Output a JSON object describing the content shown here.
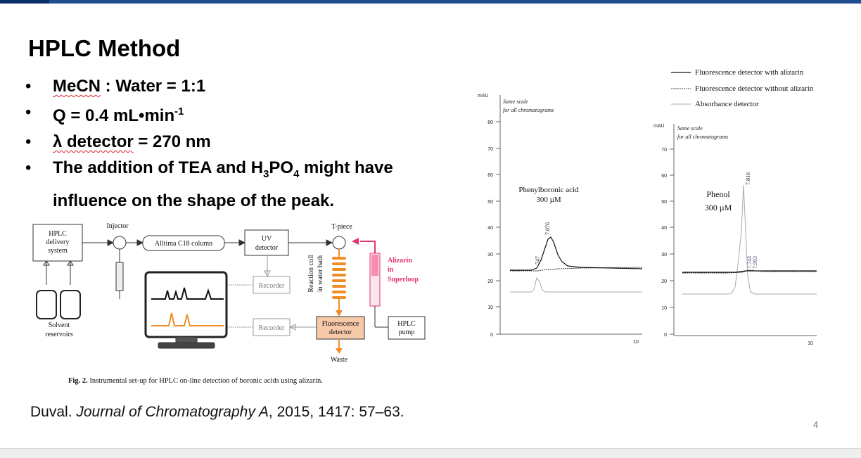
{
  "slide": {
    "title": "HPLC Method",
    "bullets": [
      {
        "a": "MeCN",
        "b": " : Water = 1:1"
      },
      {
        "a": "Q = 0.4 mL•min",
        "sup": "-1"
      },
      {
        "a": "λ detector",
        "b": " = 270 nm"
      },
      {
        "a": "The addition of TEA and H",
        "s1": "3",
        "b": "PO",
        "s2": "4",
        "c": " might have influence on the shape of the peak."
      }
    ],
    "citation": {
      "author": "Duval. ",
      "journal": "Journal of Chromatography A",
      "rest": ", 2015, 1417: 57–63."
    },
    "page_number": "4"
  },
  "diagram": {
    "hplc_delivery": "HPLC delivery system",
    "injector": "Injector",
    "column": "Alltima C18 column",
    "uv_detector": "UV detector",
    "tpiece": "T-piece",
    "alizarin": "Alizarin in Superloop",
    "reaction_coil": "Reaction coil in water bath",
    "recorder1": "Recorder",
    "recorder2": "Recorder",
    "fluorescence_detector": "Fluorescence detector",
    "hplc_pump": "HPLC pump",
    "solvent": "Solvent reservoirs",
    "waste": "Waste",
    "caption_bold": "Fig. 2.",
    "caption": " Instrumental set-up for HPLC on-line detection of boronic acids using alizarin.",
    "colors": {
      "accent": "#e8336d",
      "orange": "#f28c28",
      "fluor_fill": "#f6c9a8"
    }
  },
  "legend": {
    "items": [
      "Fluorescence detector with alizarin",
      "Fluorescence detector without alizarin",
      "Absorbance detector"
    ]
  },
  "chromatograms": [
    {
      "yunit": "mAU",
      "note1": "Same scale",
      "note2": "for all chromatograms",
      "y_ticks": [
        "0",
        "10",
        "20",
        "30",
        "40",
        "50",
        "60",
        "70",
        "80"
      ],
      "x_tick": "10",
      "compound": "Phenylboronic acid",
      "concentration": "300 µM",
      "peak_label": "7.076",
      "peak_label2": "747"
    },
    {
      "yunit": "mAU",
      "note1": "Same scale",
      "note2": "for all chromatograms",
      "y_ticks": [
        "0",
        "10",
        "20",
        "30",
        "40",
        "50",
        "60",
        "70"
      ],
      "x_tick": "10",
      "compound": "Phenol",
      "concentration": "300 µM",
      "peak_label": "7.816",
      "peak_label2": "7.743",
      "peak_label3": "7.993"
    }
  ]
}
